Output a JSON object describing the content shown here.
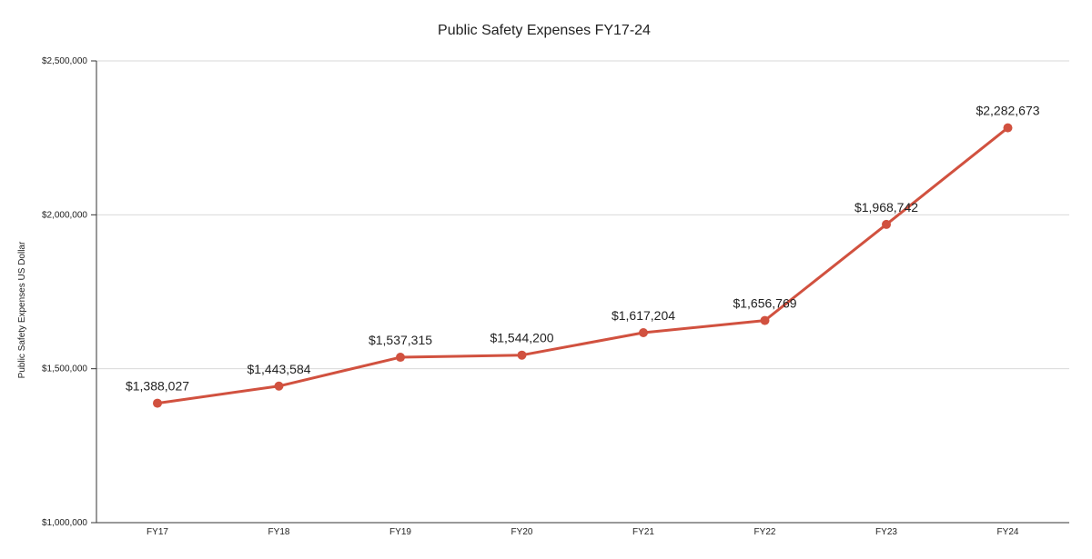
{
  "chart_data": {
    "type": "line",
    "title": "Public Safety Expenses FY17-24",
    "xlabel": "",
    "ylabel": "Public Safety Expenses US Dollar",
    "categories": [
      "FY17",
      "FY18",
      "FY19",
      "FY20",
      "FY21",
      "FY22",
      "FY23",
      "FY24"
    ],
    "series": [
      {
        "values": [
          1388027,
          1443584,
          1537315,
          1544200,
          1617204,
          1656769,
          1968742,
          2282673
        ],
        "data_labels": [
          "$1,388,027",
          "$1,443,584",
          "$1,537,315",
          "$1,544,200",
          "$1,617,204",
          "$1,656,769",
          "$1,968,742",
          "$2,282,673"
        ],
        "color": "#d1513f"
      }
    ],
    "ylim": [
      1000000,
      2500000
    ],
    "yticks": [
      1000000,
      1500000,
      2000000,
      2500000
    ],
    "ytick_labels": [
      "$1,000,000",
      "$1,500,000",
      "$2,000,000",
      "$2,500,000"
    ],
    "grid": true,
    "legend": "none",
    "gridline_color": "#d9d9d9",
    "axis_color": "#333333"
  }
}
